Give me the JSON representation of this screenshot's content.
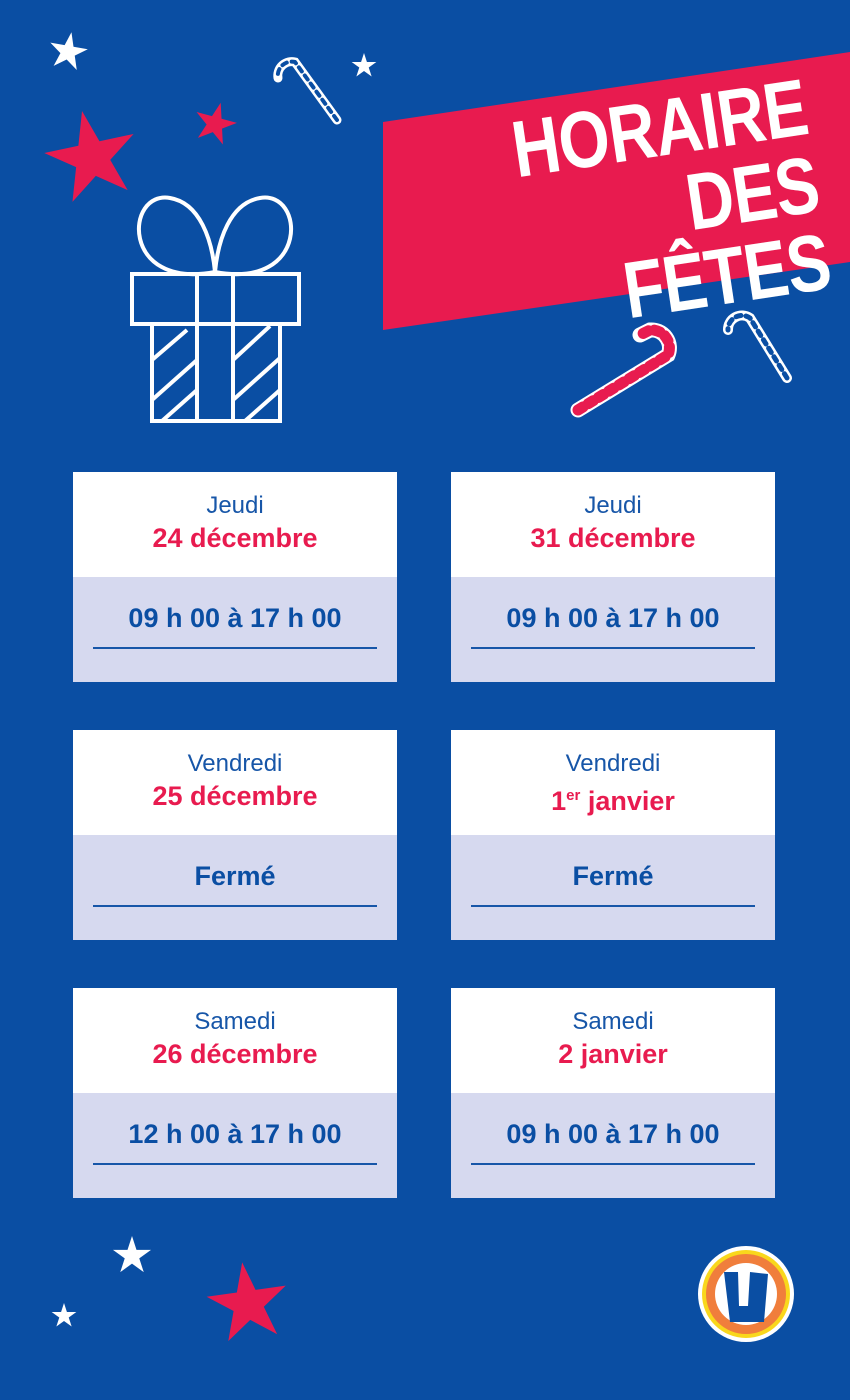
{
  "title": {
    "line1": "HORAIRE",
    "line2": "DES FÊTES"
  },
  "colors": {
    "background": "#0a4ea3",
    "accent": "#e81b4f",
    "card_bottom": "#d6d9ef",
    "logo_orange": "#f07e3c",
    "logo_yellow": "#f9d71c"
  },
  "schedule": [
    {
      "day": "Jeudi",
      "date": "24 décembre",
      "hours": "09 h 00 à 17 h 00"
    },
    {
      "day": "Jeudi",
      "date": "31 décembre",
      "hours": "09 h 00 à 17 h 00"
    },
    {
      "day": "Vendredi",
      "date": "25 décembre",
      "hours": "Fermé"
    },
    {
      "day": "Vendredi",
      "date_num": "1",
      "date_sup": "er",
      "date_rest": " janvier",
      "hours": "Fermé"
    },
    {
      "day": "Samedi",
      "date": "26 décembre",
      "hours": "12 h 00 à 17 h 00"
    },
    {
      "day": "Samedi",
      "date": "2 janvier",
      "hours": "09 h 00 à 17 h 00"
    }
  ],
  "logo": {
    "letter": "U"
  }
}
